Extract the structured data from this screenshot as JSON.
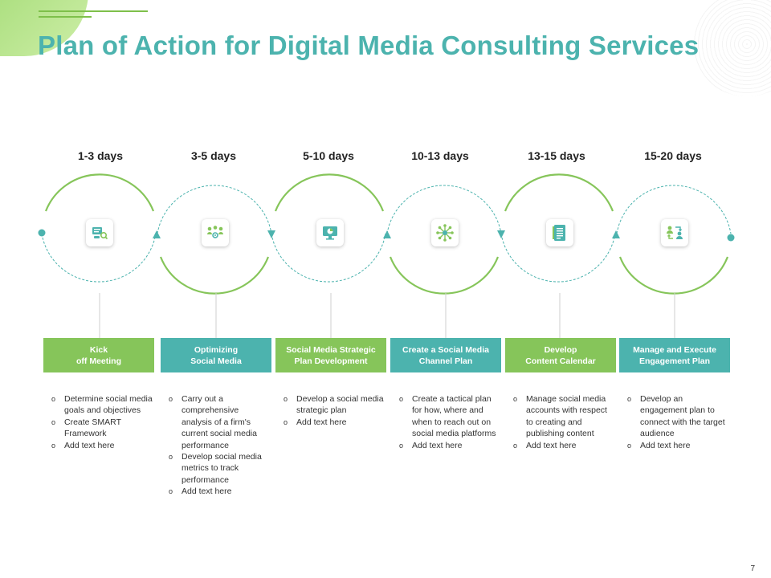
{
  "title": "Plan of Action for Digital Media Consulting Services",
  "page_number": "7",
  "colors": {
    "green": "#86c55a",
    "teal": "#4cb3ae",
    "title": "#4cb3ae"
  },
  "stages": [
    {
      "days": "1-3 days",
      "title_line1": "Kick",
      "title_line2": "off Meeting",
      "icon": "meeting-icon",
      "box_color": "green",
      "bullets": [
        "Determine social media goals and objectives",
        "Create SMART Framework",
        "Add text here"
      ]
    },
    {
      "days": "3-5 days",
      "title_line1": "Optimizing",
      "title_line2": "Social Media",
      "icon": "network-people-icon",
      "box_color": "teal",
      "bullets": [
        "Carry out a comprehensive analysis  of a firm's current social media performance",
        "Develop social media metrics to track performance",
        "Add text here"
      ]
    },
    {
      "days": "5-10 days",
      "title_line1": "Social Media Strategic",
      "title_line2": "Plan Development",
      "icon": "monitor-chart-icon",
      "box_color": "green",
      "bullets": [
        "Develop a social media strategic plan",
        "Add text here"
      ]
    },
    {
      "days": "10-13 days",
      "title_line1": "Create a Social Media",
      "title_line2": "Channel Plan",
      "icon": "hub-network-icon",
      "box_color": "teal",
      "bullets": [
        "Create a tactical plan for how, where and when to reach out on social  media platforms",
        "Add text here"
      ]
    },
    {
      "days": "13-15 days",
      "title_line1": "Develop",
      "title_line2": "Content Calendar",
      "icon": "document-calendar-icon",
      "box_color": "green",
      "bullets": [
        "Manage social media accounts with respect to creating and publishing content",
        "Add text here"
      ]
    },
    {
      "days": "15-20 days",
      "title_line1": "Manage and Execute",
      "title_line2": "Engagement Plan",
      "icon": "people-exchange-icon",
      "box_color": "teal",
      "bullets": [
        "Develop an engagement plan to connect with the target audience",
        "Add text here"
      ]
    }
  ]
}
